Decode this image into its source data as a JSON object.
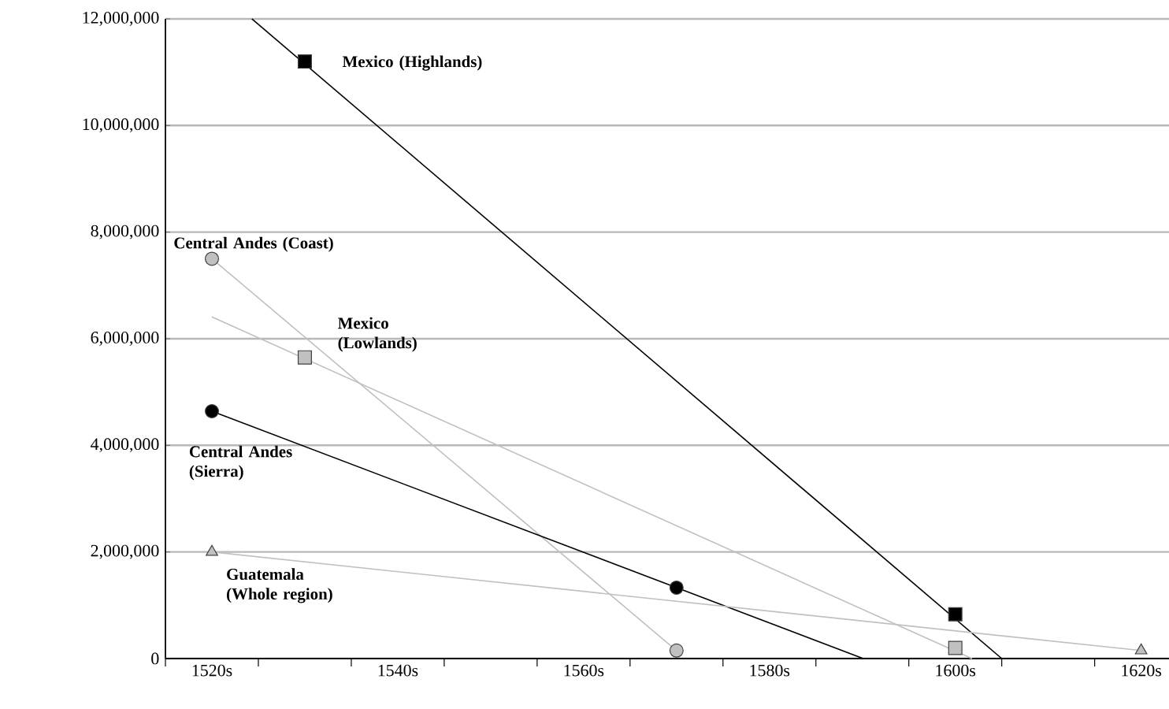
{
  "chart_data": {
    "type": "scatter",
    "grid": "y",
    "legend": false,
    "xlim": [
      1515,
      1623
    ],
    "ylim": [
      0,
      12000000
    ],
    "xticks": [
      {
        "value": 1515,
        "label": null
      },
      {
        "value": 1520,
        "label": "1520s"
      },
      {
        "value": 1525,
        "label": null
      },
      {
        "value": 1535,
        "label": null
      },
      {
        "value": 1540,
        "label": "1540s"
      },
      {
        "value": 1545,
        "label": null
      },
      {
        "value": 1555,
        "label": null
      },
      {
        "value": 1560,
        "label": "1560s"
      },
      {
        "value": 1565,
        "label": null
      },
      {
        "value": 1575,
        "label": null
      },
      {
        "value": 1580,
        "label": "1580s"
      },
      {
        "value": 1585,
        "label": null
      },
      {
        "value": 1595,
        "label": null
      },
      {
        "value": 1600,
        "label": "1600s"
      },
      {
        "value": 1605,
        "label": null
      },
      {
        "value": 1615,
        "label": null
      },
      {
        "value": 1620,
        "label": "1620s"
      }
    ],
    "yticks": [
      {
        "value": 0,
        "label": "0"
      },
      {
        "value": 2000000,
        "label": "2,000,000"
      },
      {
        "value": 4000000,
        "label": "4,000,000"
      },
      {
        "value": 6000000,
        "label": "6,000,000"
      },
      {
        "value": 8000000,
        "label": "8,000,000"
      },
      {
        "value": 10000000,
        "label": "10,000,000"
      },
      {
        "value": 12000000,
        "label": "12,000,000"
      }
    ],
    "series": [
      {
        "name": "Mexico (Highlands)",
        "marker": "square",
        "color": "#000000",
        "x": [
          1530,
          1600
        ],
        "values": [
          11200000,
          830000
        ]
      },
      {
        "type": "line",
        "color": "#000000",
        "x": [
          1524.3,
          1605
        ],
        "values": [
          12000000,
          0
        ]
      },
      {
        "name": "Mexico (Lowlands)",
        "marker": "square",
        "color": "#c0c0c0",
        "x": [
          1530,
          1600
        ],
        "values": [
          5650000,
          200000
        ]
      },
      {
        "type": "line",
        "color": "#c0c0c0",
        "x": [
          1520,
          1601.8
        ],
        "values": [
          6410000,
          0
        ]
      },
      {
        "name": "Central Andes (Coast)",
        "marker": "circle",
        "color": "#c0c0c0",
        "x": [
          1520,
          1570
        ],
        "values": [
          7500000,
          150000
        ]
      },
      {
        "type": "line",
        "color": "#c0c0c0",
        "x": [
          1520,
          1570
        ],
        "values": [
          7500000,
          150000
        ]
      },
      {
        "name": "Central Andes (Sierra)",
        "marker": "circle",
        "color": "#000000",
        "x": [
          1520,
          1570
        ],
        "values": [
          4640000,
          1330000
        ]
      },
      {
        "type": "line",
        "color": "#000000",
        "x": [
          1520,
          1590.1
        ],
        "values": [
          4640000,
          0
        ]
      },
      {
        "name": "Guatemala (Whole region)",
        "marker": "triangle",
        "color": "#c0c0c0",
        "x": [
          1520,
          1620
        ],
        "values": [
          2000000,
          150000
        ]
      },
      {
        "type": "line",
        "color": "#c0c0c0",
        "x": [
          1520,
          1620
        ],
        "values": [
          2000000,
          150000
        ]
      }
    ]
  }
}
